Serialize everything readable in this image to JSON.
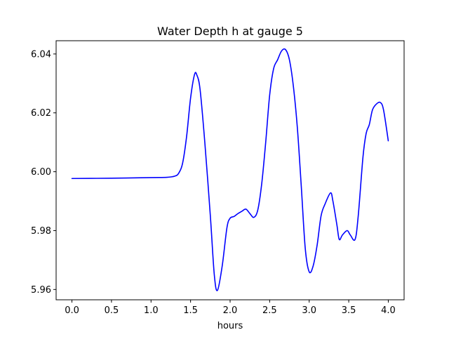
{
  "chart_data": {
    "type": "line",
    "title": "Water Depth h at gauge 5",
    "xlabel": "hours",
    "ylabel": "",
    "xlim": [
      -0.2,
      4.2
    ],
    "ylim": [
      5.9565,
      6.0445
    ],
    "xticks": [
      0.0,
      0.5,
      1.0,
      1.5,
      2.0,
      2.5,
      3.0,
      3.5,
      4.0
    ],
    "xtick_labels": [
      "0.0",
      "0.5",
      "1.0",
      "1.5",
      "2.0",
      "2.5",
      "3.0",
      "3.5",
      "4.0"
    ],
    "yticks": [
      5.96,
      5.98,
      6.0,
      6.02,
      6.04
    ],
    "ytick_labels": [
      "5.96",
      "5.98",
      "6.00",
      "6.02",
      "6.04"
    ],
    "grid": false,
    "series": [
      {
        "color": "#0000ff",
        "x": [
          0.0,
          0.5,
          1.0,
          1.2,
          1.3,
          1.35,
          1.4,
          1.45,
          1.5,
          1.55,
          1.58,
          1.62,
          1.68,
          1.75,
          1.8,
          1.84,
          1.9,
          1.96,
          2.0,
          2.05,
          2.1,
          2.15,
          2.2,
          2.25,
          2.3,
          2.35,
          2.4,
          2.45,
          2.5,
          2.55,
          2.6,
          2.65,
          2.7,
          2.75,
          2.8,
          2.85,
          2.9,
          2.95,
          3.0,
          3.05,
          3.1,
          3.15,
          3.2,
          3.27,
          3.3,
          3.35,
          3.38,
          3.42,
          3.48,
          3.52,
          3.58,
          3.62,
          3.68,
          3.72,
          3.76,
          3.8,
          3.85,
          3.9,
          3.94,
          4.0
        ],
        "y": [
          5.9977,
          5.9978,
          5.998,
          5.9981,
          5.9985,
          5.9995,
          6.003,
          6.012,
          6.025,
          6.033,
          6.0328,
          6.028,
          6.01,
          5.985,
          5.965,
          5.9597,
          5.968,
          5.981,
          5.9842,
          5.9848,
          5.9858,
          5.9866,
          5.9873,
          5.9858,
          5.9845,
          5.987,
          5.996,
          6.01,
          6.026,
          6.035,
          6.038,
          6.041,
          6.0415,
          6.038,
          6.029,
          6.015,
          5.995,
          5.974,
          5.966,
          5.968,
          5.975,
          5.985,
          5.989,
          5.9928,
          5.99,
          5.982,
          5.977,
          5.9785,
          5.98,
          5.9785,
          5.977,
          5.985,
          6.005,
          6.013,
          6.016,
          6.021,
          6.023,
          6.0235,
          6.021,
          6.0105
        ]
      }
    ]
  }
}
